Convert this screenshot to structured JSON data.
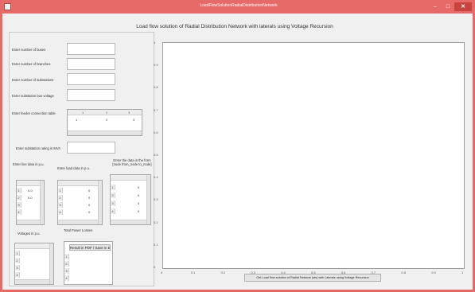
{
  "window": {
    "title": "LoadFlowSolutionRadialDistributionNetwork",
    "controls": {
      "minimize": "–",
      "maximize": "□",
      "close": "✕"
    }
  },
  "heading": "Load flow solution of Radial Distribution Network with laterals using Voltage Recursion",
  "form": {
    "buses_label": "Enter number of buses",
    "branches_label": "Enter number of branches",
    "laterals_label": "Enter number of substations",
    "voltage_label": "Enter substation bus voltage",
    "matrix_label": "Enter feeder connection table",
    "matrix_columns": [
      "1",
      "2",
      "3"
    ],
    "matrix_row": [
      "1",
      "2",
      "3"
    ],
    "settling_label": "Enter substation rating in MVA",
    "line_data_label": "Enter line data in p.u.",
    "load_data_label": "Enter load data in p.u.",
    "distribution_label": "Enter the data in the form [node from_node to_node]",
    "voltages_label": "Voltages in p.u.",
    "powerloss_label": "Total Power Losses",
    "line_table_rows": [
      {
        "n": "1",
        "v": "0.0"
      },
      {
        "n": "2",
        "v": "0.0"
      },
      {
        "n": "3",
        "v": ""
      },
      {
        "n": "4",
        "v": ""
      }
    ],
    "load_table_rows": [
      {
        "n": "1",
        "v": "0"
      },
      {
        "n": "2",
        "v": "0"
      },
      {
        "n": "3",
        "v": "0"
      },
      {
        "n": "4",
        "v": "0"
      }
    ],
    "dist_table_rows": [
      {
        "n": "1",
        "v": "0"
      },
      {
        "n": "2",
        "v": "0"
      },
      {
        "n": "3",
        "v": "0"
      },
      {
        "n": "4",
        "v": "0"
      }
    ],
    "result_rows": [
      "1",
      "2",
      "3",
      "4"
    ],
    "result_button": "Result in PDF / Save in EXCEL"
  },
  "plot": {
    "y_ticks": [
      "1",
      "0.9",
      "0.8",
      "0.7",
      "0.6",
      "0.5",
      "0.4",
      "0.3",
      "0.2",
      "0.1",
      "0"
    ],
    "x_ticks": [
      "0",
      "0.1",
      "0.2",
      "0.3",
      "0.4",
      "0.5",
      "0.6",
      "0.7",
      "0.8",
      "0.9",
      "1"
    ],
    "run_button": "Get Load flow solution of Radial Network (sfs) with Laterals using Voltage Recursion"
  }
}
